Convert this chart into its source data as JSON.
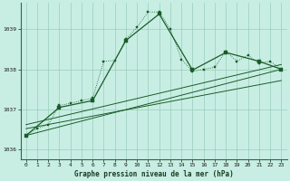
{
  "title": "Graphe pression niveau de la mer (hPa)",
  "background_color": "#c8eee4",
  "grid_color": "#99ccbb",
  "line_color": "#1a5c28",
  "xlim": [
    -0.5,
    23.5
  ],
  "ylim": [
    1035.75,
    1039.65
  ],
  "yticks": [
    1036,
    1037,
    1038,
    1039
  ],
  "xticks": [
    0,
    1,
    2,
    3,
    4,
    5,
    6,
    7,
    8,
    9,
    10,
    11,
    12,
    13,
    14,
    15,
    16,
    17,
    18,
    19,
    20,
    21,
    22,
    23
  ],
  "series_dotted": {
    "x": [
      0,
      1,
      2,
      3,
      4,
      5,
      6,
      7,
      8,
      9,
      10,
      11,
      12,
      13,
      14,
      15,
      16,
      17,
      18,
      19,
      20,
      21,
      22,
      23
    ],
    "y": [
      1036.35,
      1036.52,
      1036.62,
      1037.1,
      1037.15,
      1037.22,
      1037.28,
      1038.2,
      1038.22,
      1038.75,
      1039.05,
      1039.43,
      1039.43,
      1039.0,
      1038.25,
      1037.95,
      1038.0,
      1038.05,
      1038.45,
      1038.2,
      1038.35,
      1038.15,
      1038.2,
      1038.0
    ]
  },
  "series_solid": {
    "x": [
      0,
      3,
      6,
      9,
      12,
      15,
      18,
      21,
      23
    ],
    "y": [
      1036.35,
      1037.05,
      1037.22,
      1038.72,
      1039.38,
      1037.98,
      1038.42,
      1038.2,
      1038.0
    ]
  },
  "trend_lines": [
    {
      "x0": 0,
      "y0": 1036.35,
      "x1": 23,
      "y1": 1038.0
    },
    {
      "x0": 0,
      "y0": 1036.52,
      "x1": 23,
      "y1": 1037.72
    },
    {
      "x0": 0,
      "y0": 1036.62,
      "x1": 23,
      "y1": 1038.12
    }
  ]
}
